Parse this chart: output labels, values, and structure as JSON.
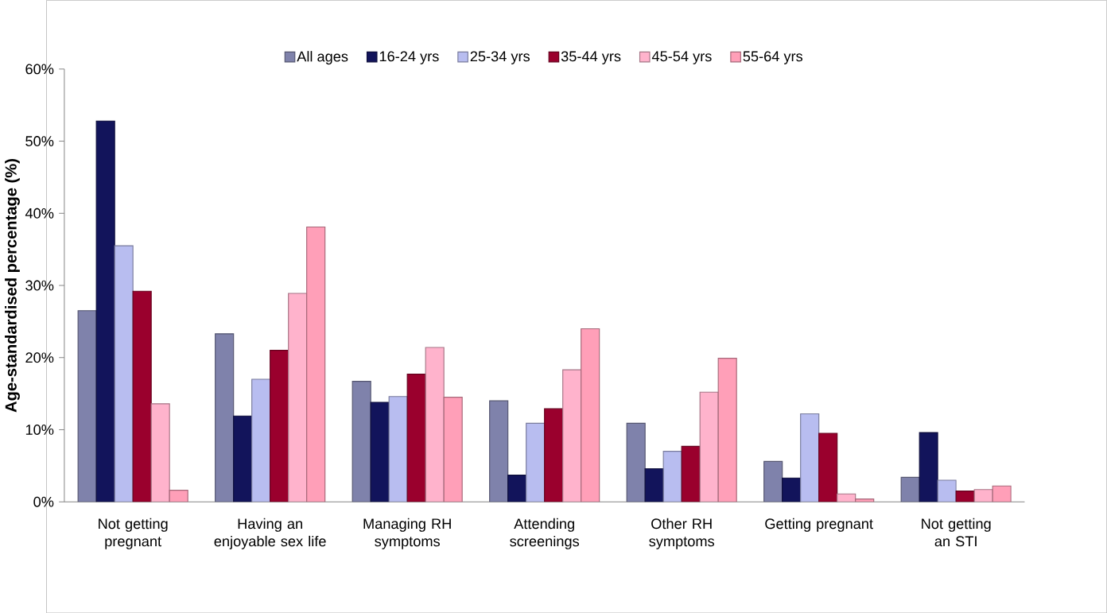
{
  "chart_data": {
    "type": "bar",
    "ylabel": "Age-standardised percentage (%)",
    "categories": [
      "Not getting pregnant",
      "Having an enjoyable sex life",
      "Managing RH symptoms",
      "Attending screenings",
      "Other RH symptoms",
      "Getting pregnant",
      "Not getting an STI"
    ],
    "series": [
      {
        "name": "All ages",
        "color": "#7f82ab",
        "values": [
          26.5,
          23.3,
          16.7,
          14.0,
          10.9,
          5.6,
          3.4
        ]
      },
      {
        "name": "16-24 yrs",
        "color": "#12145b",
        "values": [
          52.8,
          11.9,
          13.8,
          3.7,
          4.6,
          3.3,
          9.6
        ]
      },
      {
        "name": "25-34 yrs",
        "color": "#b8bdf0",
        "values": [
          35.5,
          17.0,
          14.6,
          10.9,
          7.0,
          12.2,
          3.0
        ]
      },
      {
        "name": "35-44 yrs",
        "color": "#9a002d",
        "values": [
          29.2,
          21.0,
          17.7,
          12.9,
          7.7,
          9.5,
          1.5
        ]
      },
      {
        "name": "45-54 yrs",
        "color": "#ffb3cc",
        "values": [
          13.6,
          28.9,
          21.4,
          18.3,
          15.2,
          1.1,
          1.7
        ]
      },
      {
        "name": "55-64 yrs",
        "color": "#ff9fb8",
        "values": [
          1.6,
          38.1,
          14.5,
          24.0,
          19.9,
          0.4,
          2.2
        ]
      }
    ],
    "ylim": [
      0,
      60
    ],
    "yticks": [
      {
        "value": 0,
        "label": "0%"
      },
      {
        "value": 10,
        "label": "10%"
      },
      {
        "value": 20,
        "label": "20%"
      },
      {
        "value": 30,
        "label": "30%"
      },
      {
        "value": 40,
        "label": "40%"
      },
      {
        "value": 50,
        "label": "50%"
      },
      {
        "value": 60,
        "label": "60%"
      }
    ],
    "grid": false,
    "legend": "top"
  }
}
